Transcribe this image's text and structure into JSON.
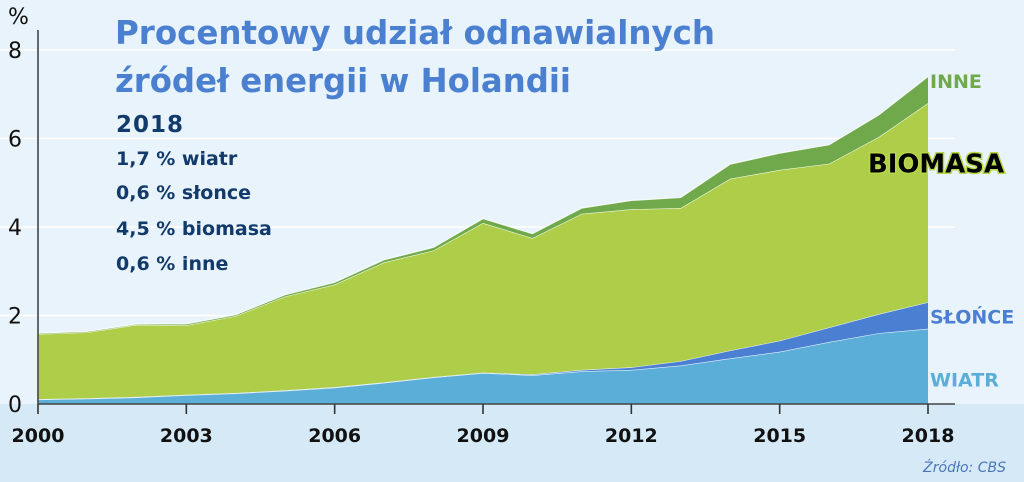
{
  "chart_data": {
    "type": "area",
    "stacked": true,
    "title_line1": "Procentowy udział odnawialnych",
    "title_line2": "źródeł energii w Holandii",
    "ylabel": "%",
    "ylim": [
      0,
      8
    ],
    "yticks": [
      "0",
      "2",
      "4",
      "6",
      "8"
    ],
    "xticks": [
      "2000",
      "2003",
      "2006",
      "2009",
      "2012",
      "2015",
      "2018"
    ],
    "x": [
      2000,
      2001,
      2002,
      2003,
      2004,
      2005,
      2006,
      2007,
      2008,
      2009,
      2010,
      2011,
      2012,
      2013,
      2014,
      2015,
      2016,
      2017,
      2018
    ],
    "grid": true,
    "series": [
      {
        "name": "WIATR",
        "color": "#5aaed8",
        "values": [
          0.1,
          0.12,
          0.15,
          0.2,
          0.24,
          0.3,
          0.37,
          0.48,
          0.6,
          0.7,
          0.65,
          0.74,
          0.77,
          0.87,
          1.03,
          1.18,
          1.4,
          1.6,
          1.7
        ]
      },
      {
        "name": "SŁOŃCE",
        "color": "#4a7fd2",
        "values": [
          0.01,
          0.01,
          0.01,
          0.01,
          0.01,
          0.01,
          0.01,
          0.01,
          0.01,
          0.01,
          0.02,
          0.03,
          0.06,
          0.1,
          0.18,
          0.25,
          0.33,
          0.43,
          0.6
        ]
      },
      {
        "name": "BIOMASA",
        "color": "#aece4a",
        "values": [
          1.47,
          1.49,
          1.63,
          1.57,
          1.74,
          2.12,
          2.32,
          2.71,
          2.86,
          3.38,
          3.08,
          3.53,
          3.57,
          3.46,
          3.88,
          3.86,
          3.7,
          4.0,
          4.5
        ]
      },
      {
        "name": "INNE",
        "color": "#6fa94b",
        "values": [
          0.02,
          0.02,
          0.02,
          0.03,
          0.03,
          0.04,
          0.05,
          0.06,
          0.07,
          0.1,
          0.1,
          0.13,
          0.2,
          0.24,
          0.33,
          0.38,
          0.43,
          0.5,
          0.6
        ]
      }
    ],
    "year_highlight": "2018",
    "stats": [
      "1,7 % wiatr",
      "0,6 % słonce",
      "4,5 % biomasa",
      "0,6 % inne"
    ],
    "source": "Źródło: CBS"
  }
}
